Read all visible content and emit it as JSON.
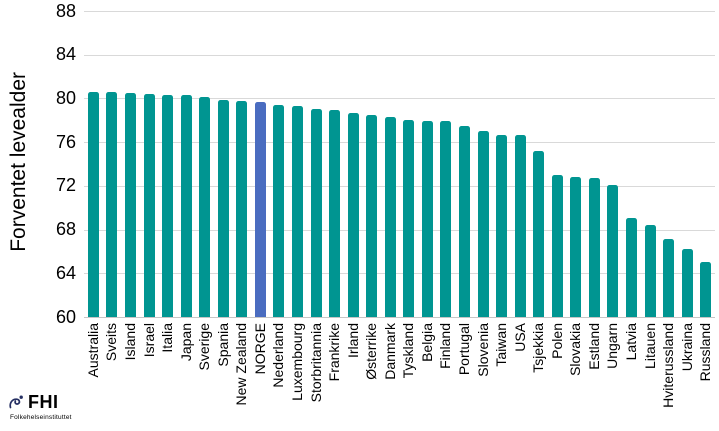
{
  "chart_data": {
    "type": "bar",
    "title": "",
    "xlabel": "",
    "ylabel": "Forventet levealder",
    "ylim": [
      60,
      88
    ],
    "yticks": [
      88,
      84,
      80,
      76,
      72,
      68,
      64,
      60
    ],
    "grid": "horizontal",
    "legend": "none",
    "categories": [
      "Australia",
      "Sveits",
      "Island",
      "Israel",
      "Italia",
      "Japan",
      "Sverige",
      "Spania",
      "New Zealand",
      "NORGE",
      "Nederland",
      "Luxembourg",
      "Storbritannia",
      "Frankrike",
      "Irland",
      "Østerrike",
      "Danmark",
      "Tyskland",
      "Belgia",
      "Finland",
      "Portugal",
      "Slovenia",
      "Taiwan",
      "USA",
      "Tsjekkia",
      "Polen",
      "Slovakia",
      "Estland",
      "Ungarn",
      "Latvia",
      "Litauen",
      "Hviterussland",
      "Ukraina",
      "Russland"
    ],
    "values": [
      80.6,
      80.6,
      80.5,
      80.4,
      80.3,
      80.3,
      80.1,
      79.9,
      79.8,
      79.7,
      79.4,
      79.3,
      79.0,
      78.9,
      78.7,
      78.5,
      78.3,
      78.0,
      77.9,
      77.9,
      77.5,
      77.0,
      76.7,
      76.7,
      75.2,
      73.0,
      72.8,
      72.7,
      72.1,
      69.1,
      68.4,
      67.1,
      66.2,
      65.0
    ],
    "highlight": {
      "category": "NORGE",
      "index": 9
    },
    "colors": {
      "bar": "#009591",
      "highlight_bar": "#4A6CC0",
      "gridline": "#D9D9D9",
      "axis_line": "#C6C6C6",
      "text": "#000000"
    }
  },
  "logo": {
    "abbr": "FHI",
    "name": "Folkehelseinstituttet",
    "color": "#263063"
  }
}
